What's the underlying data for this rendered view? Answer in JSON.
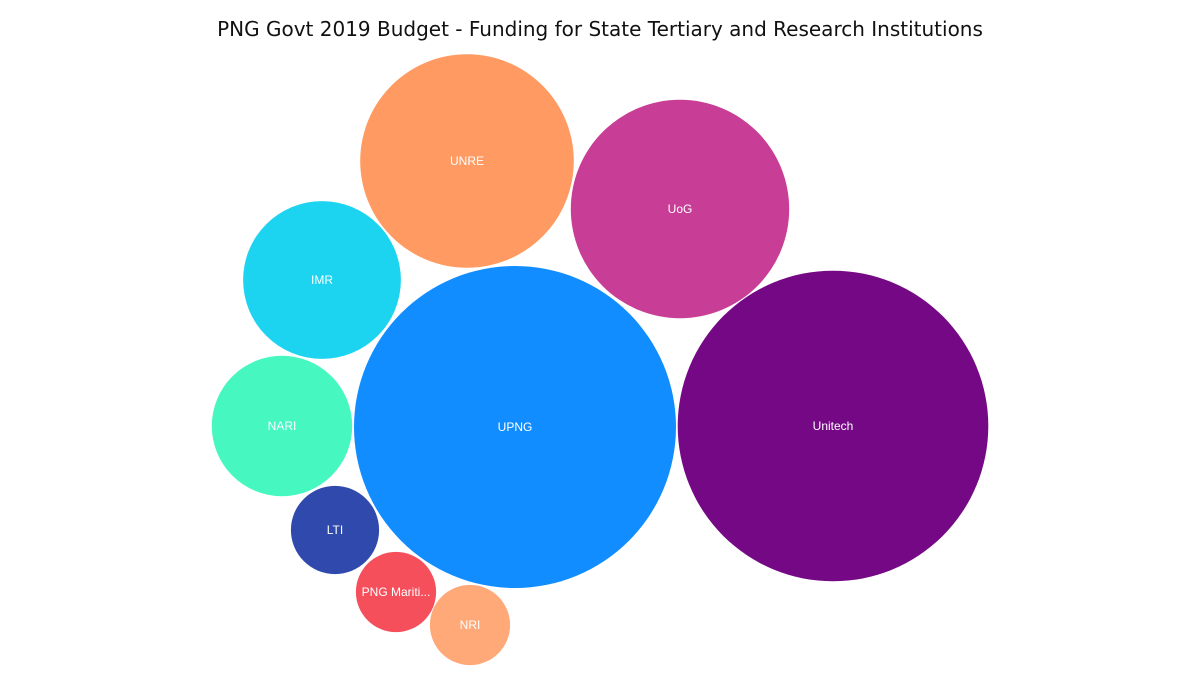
{
  "chart_data": {
    "type": "bubble",
    "title": "PNG Govt 2019 Budget - Funding for State Tertiary and Research Institutions",
    "legend": "none",
    "grid": false,
    "value_units": "relative bubble area (estimated, no values printed)",
    "bubbles": [
      {
        "label": "UPNG",
        "value": 100,
        "color": "#118DFF"
      },
      {
        "label": "Unitech",
        "value": 93,
        "color": "#750985"
      },
      {
        "label": "UoG",
        "value": 46,
        "color": "#C83D95"
      },
      {
        "label": "UNRE",
        "value": 44,
        "color": "#FF9B62"
      },
      {
        "label": "IMR",
        "value": 24,
        "color": "#1CD4EF"
      },
      {
        "label": "NARI",
        "value": 19,
        "color": "#46F7C0"
      },
      {
        "label": "LTI",
        "value": 7.5,
        "color": "#3049AD"
      },
      {
        "label": "PNG Mariti...",
        "value": 6.2,
        "color": "#F64F5C"
      },
      {
        "label": "NRI",
        "value": 6.2,
        "color": "#FFA878"
      }
    ]
  }
}
